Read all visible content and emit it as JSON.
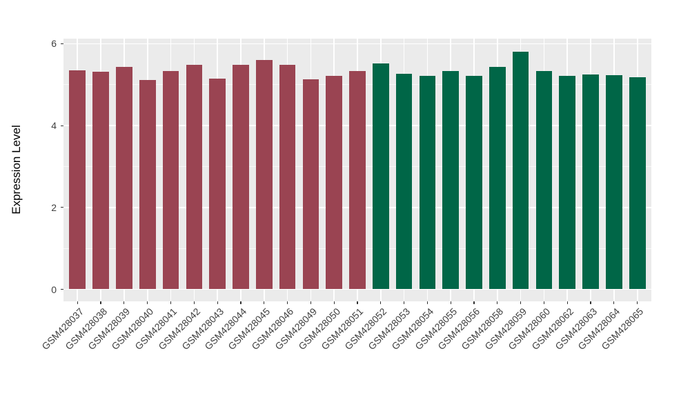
{
  "figure": {
    "background": "#FFFFFF",
    "panel_background": "#EBEBEB",
    "gridline_color": "#FFFFFF",
    "tick_color": "#333333",
    "tick_label_color": "#404040"
  },
  "chart_data": {
    "type": "bar",
    "title": "",
    "xlabel": "",
    "ylabel": "Expression Level",
    "categories": [
      "GSM428037",
      "GSM428038",
      "GSM428039",
      "GSM428040",
      "GSM428041",
      "GSM428042",
      "GSM428043",
      "GSM428044",
      "GSM428045",
      "GSM428046",
      "GSM428049",
      "GSM428050",
      "GSM428051",
      "GSM428052",
      "GSM428053",
      "GSM428054",
      "GSM428055",
      "GSM428056",
      "GSM428058",
      "GSM428059",
      "GSM428060",
      "GSM428062",
      "GSM428063",
      "GSM428064",
      "GSM428065"
    ],
    "values": [
      5.35,
      5.32,
      5.44,
      5.11,
      5.33,
      5.49,
      5.15,
      5.49,
      5.6,
      5.48,
      5.13,
      5.21,
      5.34,
      5.51,
      5.26,
      5.21,
      5.33,
      5.22,
      5.43,
      5.81,
      5.33,
      5.22,
      5.25,
      5.24,
      5.18
    ],
    "bar_groups": [
      "group1",
      "group1",
      "group1",
      "group1",
      "group1",
      "group1",
      "group1",
      "group1",
      "group1",
      "group1",
      "group1",
      "group1",
      "group1",
      "group2",
      "group2",
      "group2",
      "group2",
      "group2",
      "group2",
      "group2",
      "group2",
      "group2",
      "group2",
      "group2",
      "group2"
    ],
    "group_colors": {
      "group1": "#9A4452",
      "group2": "#006647"
    },
    "yticks": [
      0,
      2,
      4,
      6
    ],
    "ytick_labels": [
      "0",
      "2",
      "4",
      "6"
    ],
    "yminor": [
      1,
      3,
      5
    ],
    "ylim": [
      -0.29,
      6.12
    ],
    "grid": true,
    "legend": "none"
  }
}
